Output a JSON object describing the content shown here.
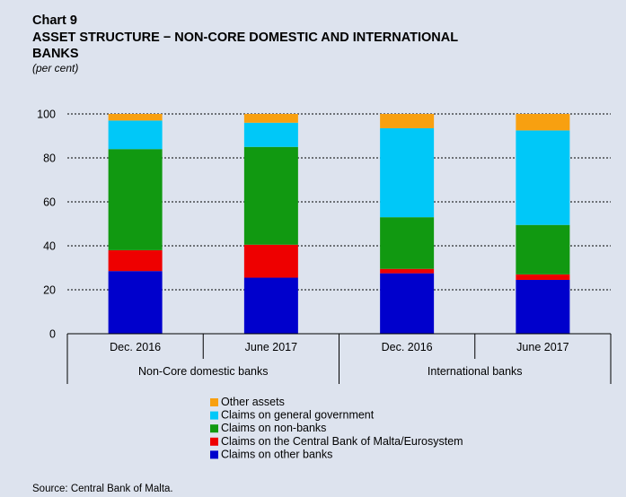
{
  "chart_data": {
    "type": "bar",
    "stacked": true,
    "title_line1": "Chart 9",
    "title_line2": "ASSET STRUCTURE − NON-CORE DOMESTIC AND INTERNATIONAL",
    "title_line3": "BANKS",
    "subtitle": "(per cent)",
    "ylim": [
      0,
      100
    ],
    "yticks": [
      "0",
      "20",
      "40",
      "60",
      "80",
      "100"
    ],
    "grid": true,
    "categories": [
      "Dec. 2016",
      "June 2017",
      "Dec. 2016",
      "June 2017"
    ],
    "groups": [
      {
        "label": "Non-Core domestic banks",
        "span": 2
      },
      {
        "label": "International banks",
        "span": 2
      }
    ],
    "series": [
      {
        "name": "Claims on other banks",
        "color": "#0000cc",
        "values": [
          28.5,
          25.5,
          27.5,
          24.5
        ]
      },
      {
        "name": "Claims on the Central Bank of Malta/Eurosystem",
        "color": "#ee0000",
        "values": [
          9.5,
          15,
          2,
          2.5
        ]
      },
      {
        "name": "Claims on non-banks",
        "color": "#119911",
        "values": [
          46,
          44.5,
          23.5,
          22.5
        ]
      },
      {
        "name": "Claims on general government",
        "color": "#00c8f8",
        "values": [
          13,
          11,
          40.5,
          43
        ]
      },
      {
        "name": "Other assets",
        "color": "#f8a010",
        "values": [
          3,
          4,
          6.5,
          7.5
        ]
      }
    ],
    "legend_order": [
      "Other assets",
      "Claims on general government",
      "Claims on non-banks",
      "Claims on the Central Bank of Malta/Eurosystem",
      "Claims on other banks"
    ],
    "legend_position": "bottom",
    "source": "Source: Central Bank of Malta."
  }
}
